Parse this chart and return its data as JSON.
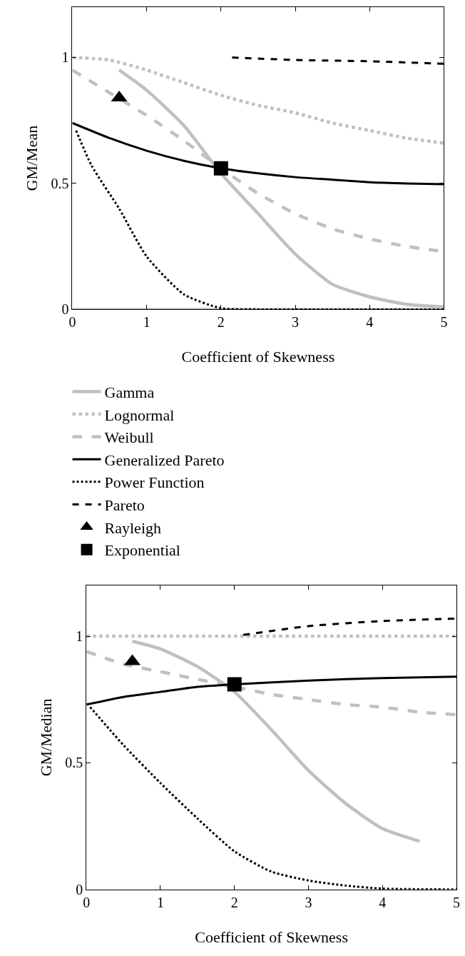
{
  "chart_data": [
    {
      "type": "line",
      "xlabel": "Coefficient of Skewness",
      "ylabel": "GM/Mean",
      "xlim": [
        0,
        5
      ],
      "ylim": [
        0,
        1.2
      ],
      "xticks": [
        0,
        1,
        2,
        3,
        4,
        5
      ],
      "yticks": [
        0,
        0.5,
        1
      ],
      "legend": "bottom",
      "series": [
        {
          "name": "Gamma",
          "color": "#c0c0c0",
          "line_style": "solid",
          "x": [
            0.63,
            1,
            1.5,
            2,
            2.5,
            3,
            3.5,
            4,
            4.5,
            5
          ],
          "values": [
            0.95,
            0.87,
            0.73,
            0.54,
            0.38,
            0.22,
            0.1,
            0.05,
            0.02,
            0.01
          ]
        },
        {
          "color": "#c0c0c0",
          "line_style": "solid",
          "x": [
            0,
            5
          ],
          "values": [
            0,
            0
          ]
        },
        {
          "name": "Lognormal",
          "color": "#c0c0c0",
          "line_style": "dotted",
          "x": [
            0,
            0.5,
            1,
            1.5,
            2,
            2.5,
            3,
            3.5,
            4,
            4.5,
            5
          ],
          "values": [
            1.0,
            0.99,
            0.95,
            0.9,
            0.85,
            0.81,
            0.78,
            0.74,
            0.71,
            0.68,
            0.66
          ]
        },
        {
          "name": "Weibull",
          "color": "#c0c0c0",
          "line_style": "dashed",
          "x": [
            0,
            0.5,
            1,
            1.5,
            2,
            2.5,
            3,
            3.5,
            4,
            4.5,
            5
          ],
          "values": [
            0.95,
            0.86,
            0.77,
            0.67,
            0.56,
            0.46,
            0.38,
            0.32,
            0.28,
            0.25,
            0.23
          ]
        },
        {
          "name": "Generalized Pareto",
          "color": "#000000",
          "line_style": "solid",
          "x": [
            0,
            0.5,
            1,
            1.5,
            2,
            2.5,
            3,
            3.5,
            4,
            4.5,
            5
          ],
          "values": [
            0.74,
            0.68,
            0.63,
            0.59,
            0.56,
            0.54,
            0.525,
            0.515,
            0.505,
            0.5,
            0.497
          ]
        },
        {
          "name": "Power Function",
          "color": "#000000",
          "line_style": "dotted",
          "x": [
            0.05,
            0.26,
            0.63,
            1,
            1.5,
            2,
            2.5,
            3,
            4,
            5
          ],
          "values": [
            0.71,
            0.57,
            0.4,
            0.21,
            0.06,
            0.005,
            0,
            0,
            0,
            0
          ]
        },
        {
          "name": "Pareto",
          "color": "#000000",
          "line_style": "dashed",
          "x": [
            2.15,
            3,
            4,
            5
          ],
          "values": [
            1.0,
            0.99,
            0.985,
            0.975
          ]
        },
        {
          "name": "Rayleigh",
          "type": "scatter",
          "marker": "triangle",
          "color": "#000000",
          "x": [
            0.63
          ],
          "values": [
            0.84
          ]
        },
        {
          "name": "Exponential",
          "type": "scatter",
          "marker": "square",
          "color": "#000000",
          "x": [
            2
          ],
          "values": [
            0.56
          ]
        }
      ]
    },
    {
      "type": "line",
      "xlabel": "Coefficient of Skewness",
      "ylabel": "GM/Median",
      "xlim": [
        0,
        5
      ],
      "ylim": [
        0,
        1.2
      ],
      "xticks": [
        0,
        1,
        2,
        3,
        4,
        5
      ],
      "yticks": [
        0,
        0.5,
        1
      ],
      "series": [
        {
          "color": "#c0c0c0",
          "line_style": "solid",
          "x": [
            0.62,
            1,
            1.5,
            2,
            2.5,
            3,
            3.5,
            4,
            4.5
          ],
          "values": [
            0.98,
            0.95,
            0.88,
            0.78,
            0.63,
            0.47,
            0.34,
            0.24,
            0.19
          ]
        },
        {
          "color": "#c0c0c0",
          "line_style": "dotted",
          "x": [
            0,
            1,
            2,
            3,
            4,
            5
          ],
          "values": [
            1.0,
            1.0,
            1.0,
            1.0,
            1.0,
            1.0
          ]
        },
        {
          "color": "#c0c0c0",
          "line_style": "dashed",
          "x": [
            0,
            0.5,
            1,
            1.5,
            2,
            2.5,
            3,
            3.5,
            4,
            4.5,
            5
          ],
          "values": [
            0.94,
            0.89,
            0.86,
            0.83,
            0.8,
            0.77,
            0.75,
            0.73,
            0.72,
            0.7,
            0.69
          ]
        },
        {
          "color": "#000000",
          "line_style": "solid",
          "x": [
            0,
            0.5,
            1,
            1.5,
            2,
            3,
            4,
            5
          ],
          "values": [
            0.73,
            0.76,
            0.78,
            0.8,
            0.81,
            0.825,
            0.835,
            0.84
          ]
        },
        {
          "color": "#000000",
          "line_style": "dotted",
          "x": [
            0.05,
            0.5,
            1,
            1.5,
            2,
            2.5,
            3,
            3.5,
            4,
            5
          ],
          "values": [
            0.72,
            0.57,
            0.42,
            0.28,
            0.15,
            0.07,
            0.035,
            0.015,
            0.003,
            0
          ]
        },
        {
          "color": "#000000",
          "line_style": "dashed",
          "x": [
            2.12,
            3,
            4,
            5
          ],
          "values": [
            1.005,
            1.04,
            1.06,
            1.07
          ]
        },
        {
          "type": "scatter",
          "marker": "triangle",
          "color": "#000000",
          "x": [
            0.62
          ],
          "values": [
            0.9
          ]
        },
        {
          "type": "scatter",
          "marker": "square",
          "color": "#000000",
          "x": [
            2
          ],
          "values": [
            0.81
          ]
        }
      ]
    }
  ]
}
